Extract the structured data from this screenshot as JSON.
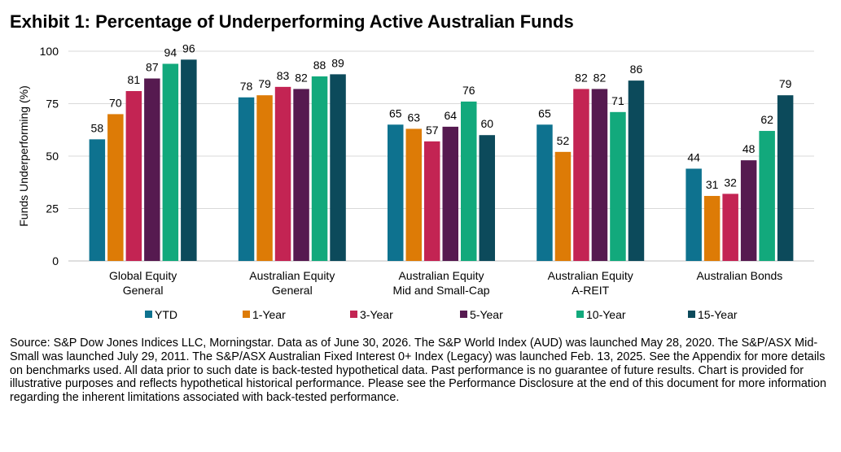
{
  "title": "Exhibit 1: Percentage of Underperforming Active Australian Funds",
  "colors": {
    "YTD": "#0e728f",
    "1-Year": "#dd7b06",
    "3-Year": "#c32453",
    "5-Year": "#561a50",
    "10-Year": "#12a97c",
    "15-Year": "#0c4a5b",
    "gridline": "#d9d9d9",
    "axis": "#bfbfbf"
  },
  "chart_data": {
    "type": "bar",
    "title": "Exhibit 1: Percentage of Underperforming Active Australian Funds",
    "ylabel": "Funds Underperforming (%)",
    "xlabel": "",
    "ylim": [
      0,
      100
    ],
    "yticks": [
      0,
      25,
      50,
      75,
      100
    ],
    "grid": true,
    "legend_position": "bottom",
    "categories": [
      [
        "Global Equity",
        "General"
      ],
      [
        "Australian Equity",
        "General"
      ],
      [
        "Australian Equity",
        "Mid and Small-Cap"
      ],
      [
        "Australian Equity",
        "A-REIT"
      ],
      [
        "Australian Bonds"
      ]
    ],
    "series": [
      {
        "name": "YTD",
        "values": [
          58,
          78,
          65,
          65,
          44
        ]
      },
      {
        "name": "1-Year",
        "values": [
          70,
          79,
          63,
          52,
          31
        ]
      },
      {
        "name": "3-Year",
        "values": [
          81,
          83,
          57,
          82,
          32
        ]
      },
      {
        "name": "5-Year",
        "values": [
          87,
          82,
          64,
          82,
          48
        ]
      },
      {
        "name": "10-Year",
        "values": [
          94,
          88,
          76,
          71,
          62
        ]
      },
      {
        "name": "15-Year",
        "values": [
          96,
          89,
          60,
          86,
          79
        ]
      }
    ]
  },
  "footnote": "Source: S&P Dow Jones Indices LLC, Morningstar.  Data as of June 30, 2026.  The S&P World Index (AUD) was launched May 28, 2020.  The S&P/ASX Mid-Small was launched July 29, 2011.  The S&P/ASX Australian Fixed Interest 0+ Index (Legacy) was launched Feb. 13, 2025.  See the Appendix for more details on benchmarks used. All data prior to such date is back-tested hypothetical data.  Past performance is no guarantee of future results.  Chart is provided for illustrative purposes and reflects hypothetical historical performance.  Please see the Performance Disclosure at the end of this document for more information regarding the inherent limitations associated with back-tested performance."
}
